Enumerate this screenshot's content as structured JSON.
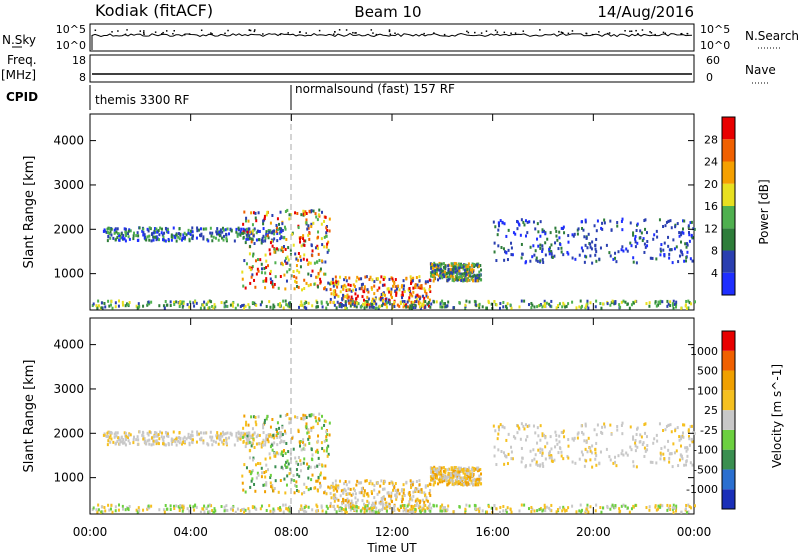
{
  "header": {
    "title": "Kodiak (fitACF)",
    "beam": "Beam 10",
    "date": "14/Aug/2016"
  },
  "left_labels": {
    "nsky": "N.Sky",
    "freq": "Freq.",
    "freq_unit": "[MHz]",
    "cpid": "CPID"
  },
  "right_labels": {
    "nsearch": "N.Search",
    "nave": "Nave"
  },
  "nsky_ticks": [
    "10^5",
    "10^0"
  ],
  "nsearch_ticks": [
    "10^5",
    "10^0"
  ],
  "freq_ticks": [
    "18",
    "8"
  ],
  "nave_ticks": [
    "60",
    "0"
  ],
  "cpid_modes": [
    {
      "label": "themis 3300 RF",
      "start_hour": 0
    },
    {
      "label": "normalsound (fast) 157 RF",
      "start_hour": 8
    }
  ],
  "chart_data": [
    {
      "type": "heatmap",
      "name": "power",
      "ylabel": "Slant Range [km]",
      "yticks": [
        1000,
        2000,
        3000,
        4000
      ],
      "ylim": [
        180,
        4600
      ],
      "xlim": [
        0,
        24
      ],
      "colorbar_label": "Power [dB]",
      "colorbar_ticks": [
        "28",
        "24",
        "20",
        "16",
        "12",
        "8",
        "4"
      ],
      "colors": [
        "#1f2fff",
        "#2a3fb0",
        "#2e7d3a",
        "#4fb04f",
        "#e8e020",
        "#f5a000",
        "#f06000",
        "#e80000"
      ]
    },
    {
      "type": "heatmap",
      "name": "velocity",
      "ylabel": "Slant Range [km]",
      "yticks": [
        1000,
        2000,
        3000,
        4000
      ],
      "ylim": [
        180,
        4600
      ],
      "xlim": [
        0,
        24
      ],
      "xticks": [
        "00:00",
        "04:00",
        "08:00",
        "12:00",
        "16:00",
        "20:00",
        "00:00"
      ],
      "xlabel": "Time UT",
      "colorbar_label": "Velocity [m s^-1]",
      "colorbar_ticks": [
        "1000",
        "500",
        "100",
        "25",
        "-25",
        "-100",
        "-500",
        "-1000"
      ],
      "colors": [
        "#1a2fb8",
        "#2a6fd0",
        "#3a8f50",
        "#6cd040",
        "#c8c8c8",
        "#f5c020",
        "#f0a000",
        "#f06000",
        "#e80000"
      ]
    }
  ],
  "scatter_regions": [
    {
      "x": [
        0.5,
        7.8
      ],
      "y": [
        1700,
        2000
      ],
      "power": "blue-green",
      "vel": "gray"
    },
    {
      "x": [
        6,
        9.5
      ],
      "y": [
        600,
        2400
      ],
      "power": "mixed-red",
      "vel": "green-orange"
    },
    {
      "x": [
        9.5,
        13.5
      ],
      "y": [
        200,
        900
      ],
      "power": "red-orange",
      "vel": "gray-orange"
    },
    {
      "x": [
        13.5,
        15.5
      ],
      "y": [
        800,
        1200
      ],
      "power": "orange-green",
      "vel": "orange"
    },
    {
      "x": [
        16,
        24
      ],
      "y": [
        1200,
        2200
      ],
      "power": "blue",
      "vel": "gray"
    },
    {
      "x": [
        0,
        24
      ],
      "y": [
        180,
        350
      ],
      "power": "ground",
      "vel": "ground"
    }
  ]
}
